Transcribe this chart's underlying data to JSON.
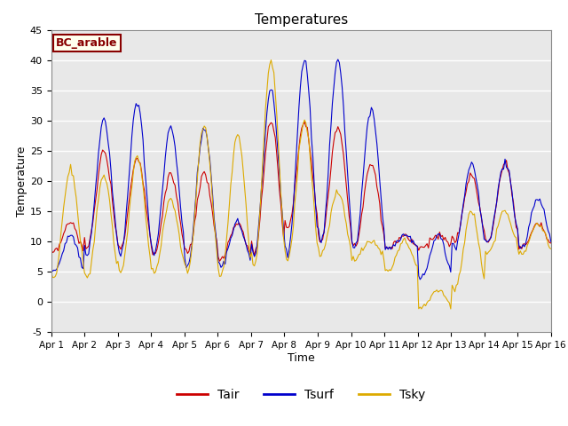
{
  "title": "Temperatures",
  "xlabel": "Time",
  "ylabel": "Temperature",
  "ylim": [
    -5,
    45
  ],
  "xlim": [
    0,
    15
  ],
  "bg_color": "#e8e8e8",
  "grid_color": "white",
  "line_colors": {
    "Tair": "#cc0000",
    "Tsurf": "#0000cc",
    "Tsky": "#ddaa00"
  },
  "label_text": "BC_arable",
  "label_bg": "#ffffee",
  "label_border": "#880000",
  "xtick_labels": [
    "Apr 1",
    "Apr 2",
    "Apr 3",
    "Apr 4",
    "Apr 5",
    "Apr 6",
    "Apr 7",
    "Apr 8",
    "Apr 9",
    "Apr 10",
    "Apr 11",
    "Apr 12",
    "Apr 13",
    "Apr 14",
    "Apr 15",
    "Apr 16"
  ],
  "ytick_values": [
    -5,
    0,
    5,
    10,
    15,
    20,
    25,
    30,
    35,
    40,
    45
  ],
  "n_days": 15,
  "pts_per_day": 24
}
